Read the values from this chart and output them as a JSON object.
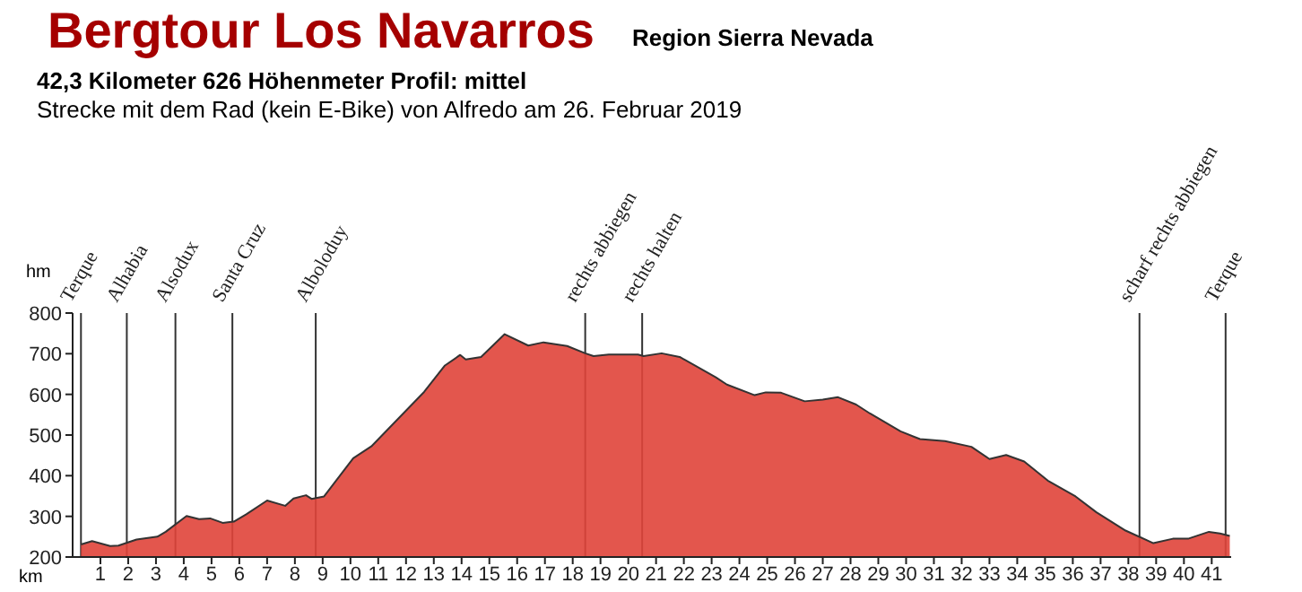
{
  "chart_data": {
    "type": "area",
    "title": "Bergtour Los Navarros",
    "subtitle": "Region Sierra Nevada",
    "annotations": [
      "42,3 Kilometer  626 Höhenmeter  Profil: mittel",
      "Strecke mit dem Rad (kein E-Bike) von Alfredo am 26. Februar 2019"
    ],
    "xlabel": "km",
    "ylabel": "hm",
    "series": [
      {
        "color": "#e0443a",
        "x": [
          0.3,
          0.7,
          1.35,
          1.65,
          2.3,
          3.05,
          3.35,
          4.1,
          4.55,
          4.95,
          5.4,
          5.8,
          6.25,
          7.0,
          7.65,
          7.95,
          8.4,
          8.6,
          9.05,
          10.1,
          10.75,
          12.65,
          13.4,
          13.95,
          14.15,
          14.7,
          15.55,
          16.4,
          16.95,
          17.8,
          18.45,
          18.75,
          19.3,
          20.35,
          20.55,
          21.2,
          21.85,
          23.15,
          23.55,
          24.55,
          24.95,
          25.5,
          26.35,
          27.0,
          27.55,
          28.2,
          28.7,
          29.8,
          30.5,
          31.4,
          32.35,
          33.0,
          33.6,
          34.25,
          35.1,
          36.1,
          36.85,
          37.9,
          38.9,
          39.6,
          40.15,
          40.9,
          41.3,
          41.65
        ],
        "values": [
          231,
          239,
          227,
          228,
          243,
          250,
          262,
          301,
          293,
          295,
          284,
          287,
          305,
          339,
          326,
          344,
          352,
          343,
          349,
          443,
          472,
          606,
          671,
          697,
          686,
          692,
          748,
          720,
          728,
          719,
          701,
          694,
          698,
          698,
          694,
          701,
          692,
          642,
          624,
          598,
          605,
          604,
          583,
          587,
          593,
          575,
          553,
          509,
          490,
          485,
          471,
          441,
          451,
          435,
          388,
          349,
          310,
          265,
          234,
          245,
          245,
          262,
          258,
          252
        ]
      }
    ],
    "xlim": [
      0.0,
      41.7
    ],
    "ylim": [
      200,
      800
    ],
    "xticks": [
      1,
      2,
      3,
      4,
      5,
      6,
      7,
      8,
      9,
      10,
      11,
      12,
      13,
      14,
      15,
      16,
      17,
      18,
      19,
      20,
      21,
      22,
      23,
      24,
      25,
      26,
      27,
      28,
      29,
      30,
      31,
      32,
      33,
      34,
      35,
      36,
      37,
      38,
      39,
      40,
      41
    ],
    "yticks": [
      200,
      300,
      400,
      500,
      600,
      700,
      800
    ],
    "ref_lines": [
      {
        "axis": "x",
        "value": 0.3,
        "label": "Terque"
      },
      {
        "axis": "x",
        "value": 1.95,
        "label": "Alhabia"
      },
      {
        "axis": "x",
        "value": 3.7,
        "label": "Alsodux"
      },
      {
        "axis": "x",
        "value": 5.75,
        "label": "Santa Cruz"
      },
      {
        "axis": "x",
        "value": 8.75,
        "label": "Alboloduy"
      },
      {
        "axis": "x",
        "value": 18.45,
        "label": "rechts abbiegen"
      },
      {
        "axis": "x",
        "value": 20.5,
        "label": "rechts halten"
      },
      {
        "axis": "x",
        "value": 38.4,
        "label": "scharf rechts abbiegen"
      },
      {
        "axis": "x",
        "value": 41.5,
        "label": "Terque"
      }
    ],
    "grid": false
  }
}
